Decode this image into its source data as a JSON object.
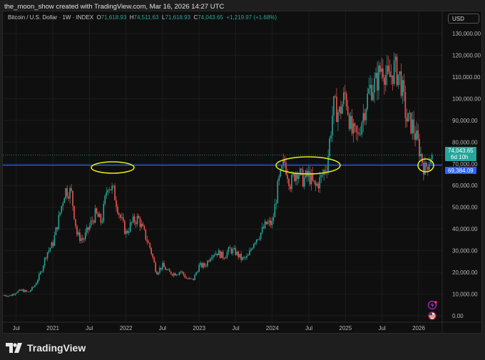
{
  "header": {
    "credit": "the_moon_show created with TradingView.com, Mar 16, 2026 14:27 UTC"
  },
  "legend": {
    "symbol": "Bitcoin / U.S. Dollar · 1W · INDEX",
    "o_label": "O",
    "o": "71,618.93",
    "h_label": "H",
    "h": "74,511.63",
    "l_label": "L",
    "l": "71,618.93",
    "c_label": "C",
    "c": "74,043.65",
    "change": "+1,219.97 (+1.68%)"
  },
  "currency_button": "USD",
  "price_labels": {
    "last": "74,043.65",
    "countdown": "6d 10h",
    "line": "69,384.09"
  },
  "brand": "TradingView",
  "colors": {
    "up": "#26a69a",
    "down": "#ef5350",
    "hline": "#2962ff",
    "ellipse": "#e6f014",
    "last_bg": "#26a69a",
    "line_bg": "#2962ff"
  },
  "icons": [
    "lightning-icon",
    "us-flag-icon"
  ],
  "chart_data": {
    "type": "candlestick",
    "interval": "1W",
    "ylim": [
      0,
      135000
    ],
    "y_ticks": [
      "0.00",
      "10,000.00",
      "20,000.00",
      "30,000.00",
      "40,000.00",
      "50,000.00",
      "60,000.00",
      "70,000.00",
      "80,000.00",
      "90,000.00",
      "100,000.00",
      "110,000.00",
      "120,000.00",
      "130,000.00"
    ],
    "y_tick_values": [
      0,
      10000,
      20000,
      30000,
      40000,
      50000,
      60000,
      70000,
      80000,
      90000,
      100000,
      110000,
      120000,
      130000
    ],
    "x_ticks": [
      {
        "label": "Jul",
        "t": 2020.5
      },
      {
        "label": "2021",
        "t": 2021
      },
      {
        "label": "Jul",
        "t": 2021.5
      },
      {
        "label": "2022",
        "t": 2022
      },
      {
        "label": "Jul",
        "t": 2022.5
      },
      {
        "label": "2023",
        "t": 2023
      },
      {
        "label": "Jul",
        "t": 2023.5
      },
      {
        "label": "2024",
        "t": 2024
      },
      {
        "label": "Jul",
        "t": 2024.5
      },
      {
        "label": "2025",
        "t": 2025
      },
      {
        "label": "Jul",
        "t": 2025.5
      },
      {
        "label": "2026",
        "t": 2026
      }
    ],
    "start": "2020-05",
    "monthly_close_approx": [
      9500,
      9200,
      11000,
      11700,
      10800,
      13800,
      19700,
      29000,
      33000,
      45000,
      58000,
      57000,
      37000,
      35000,
      41000,
      47000,
      43000,
      61000,
      57000,
      46000,
      38000,
      43000,
      45000,
      38000,
      31000,
      20000,
      23000,
      20000,
      19400,
      20500,
      17000,
      16500,
      23000,
      23100,
      28500,
      29200,
      27200,
      30500,
      29200,
      26000,
      27000,
      34500,
      37700,
      42300,
      42500,
      61000,
      71000,
      60600,
      67500,
      62700,
      64600,
      59000,
      63300,
      70200,
      96400,
      93400,
      102400,
      84300,
      82500,
      94200,
      104600,
      107100,
      115700,
      108200,
      114000,
      109500,
      90400,
      87500,
      78000,
      67000,
      74043.65
    ],
    "horizontal_line": 69384.09,
    "last_price": 74043.65,
    "annotations": [
      "ellipse around 2021 top",
      "ellipse around 2024 range",
      "ellipse around current price"
    ]
  }
}
